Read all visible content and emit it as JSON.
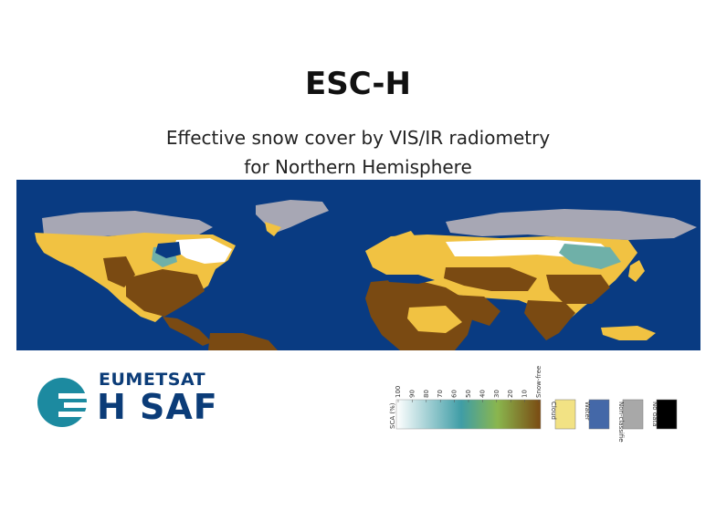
{
  "header": {
    "title": "ESC-H",
    "subtitle_line1": "Effective snow cover by VIS/IR radiometry",
    "subtitle_line2": "for Northern Hemisphere"
  },
  "map": {
    "colors": {
      "water": "#093b82",
      "snow_free": "#7a4a12",
      "cloud": "#f1c242",
      "non_classified": "#a7a7b4",
      "snow": "#ffffff",
      "snow_partial": "#6fb0a8"
    }
  },
  "logo": {
    "org": "EUMETSAT",
    "product": "H SAF"
  },
  "legend": {
    "axis_label": "SCA (%)",
    "ticks": [
      "100",
      "90",
      "80",
      "70",
      "60",
      "50",
      "40",
      "30",
      "20",
      "10",
      "Snow-free"
    ],
    "classes": [
      {
        "label": "Cloud",
        "color": "#f2e284"
      },
      {
        "label": "Water",
        "color": "#4468a8"
      },
      {
        "label": "Non-classified",
        "color": "#a8a8a8"
      },
      {
        "label": "No data",
        "color": "#000000"
      }
    ]
  }
}
